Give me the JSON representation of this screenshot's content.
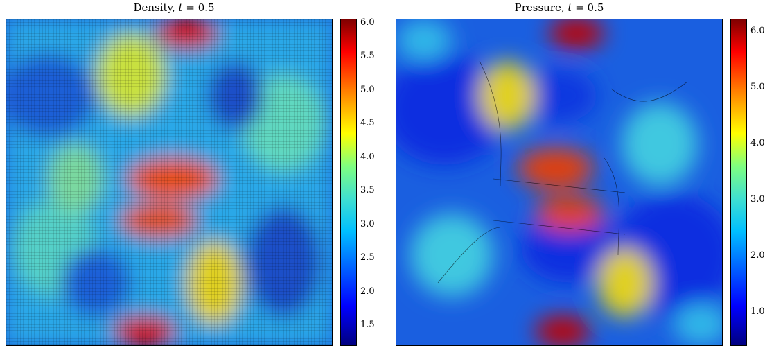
{
  "panels": [
    {
      "title_text": "Density, ",
      "title_var": "t",
      "title_eq": " = 0.5",
      "colorbar_ticks": [
        "6.0",
        "5.5",
        "5.0",
        "4.5",
        "4.0",
        "3.5",
        "3.0",
        "2.5",
        "2.0",
        "1.5"
      ],
      "colorbar_range": [
        1.2,
        6.0
      ],
      "mesh_overlay": true
    },
    {
      "title_text": "Pressure, ",
      "title_var": "t",
      "title_eq": " = 0.5",
      "colorbar_ticks": [
        "6.0",
        "5.0",
        "4.0",
        "3.0",
        "2.0",
        "1.0"
      ],
      "colorbar_range": [
        0.4,
        6.4
      ],
      "mesh_overlay": false
    }
  ],
  "colormap": [
    "#00007f",
    "#0000ff",
    "#00bfff",
    "#40e0d0",
    "#7fff7f",
    "#ffff00",
    "#ff8000",
    "#ff0000",
    "#7f0000"
  ]
}
